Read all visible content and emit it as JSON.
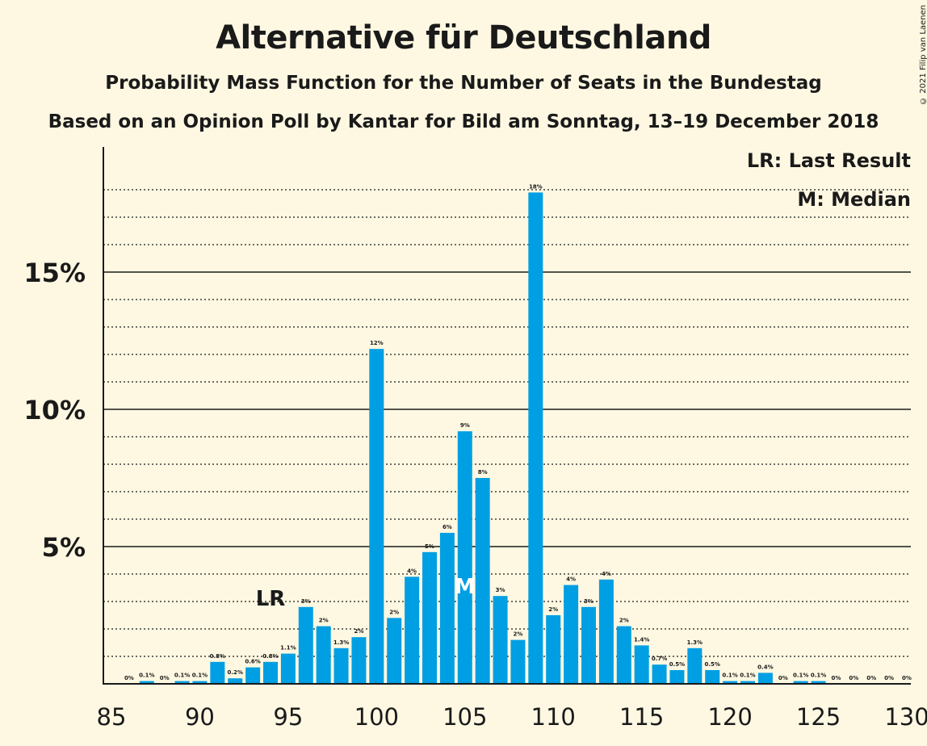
{
  "title": "Alternative für Deutschland",
  "subtitle": "Probability Mass Function for the Number of Seats in the Bundestag",
  "subtitle2": "Based on an Opinion Poll by Kantar for Bild am Sonntag, 13–19 December 2018",
  "copyright": "© 2021 Filip van Laenen",
  "legend": {
    "lr": "LR: Last Result",
    "m": "M: Median"
  },
  "colors": {
    "bar": "#009fe3",
    "background": "#fef8e2"
  },
  "chart_data": {
    "type": "bar",
    "x": [
      86,
      87,
      88,
      89,
      90,
      91,
      92,
      93,
      94,
      95,
      96,
      97,
      98,
      99,
      100,
      101,
      102,
      103,
      104,
      105,
      106,
      107,
      108,
      109,
      110,
      111,
      112,
      113,
      114,
      115,
      116,
      117,
      118,
      119,
      120,
      121,
      122,
      123,
      124,
      125,
      126,
      127,
      128,
      129,
      130
    ],
    "values": [
      0,
      0.1,
      0,
      0.1,
      0.1,
      0.8,
      0.2,
      0.6,
      0.8,
      1.1,
      2.8,
      2.1,
      1.3,
      1.7,
      12.2,
      2.4,
      3.9,
      4.8,
      5.5,
      9.2,
      7.5,
      3.2,
      1.6,
      17.9,
      2.5,
      3.6,
      2.8,
      3.8,
      2.1,
      1.4,
      0.7,
      0.5,
      1.3,
      0.5,
      0.1,
      0.1,
      0.4,
      0,
      0.1,
      0.1,
      0,
      0,
      0,
      0,
      0
    ],
    "labels": [
      "0%",
      "0.1%",
      "0%",
      "0.1%",
      "0.1%",
      "0.8%",
      "0.2%",
      "0.6%",
      "0.8%",
      "1.1%",
      "3%",
      "2%",
      "1.3%",
      "2%",
      "12%",
      "2%",
      "4%",
      "5%",
      "6%",
      "9%",
      "8%",
      "3%",
      "2%",
      "18%",
      "2%",
      "4%",
      "3%",
      "4%",
      "2%",
      "1.4%",
      "0.7%",
      "0.5%",
      "1.3%",
      "0.5%",
      "0.1%",
      "0.1%",
      "0.4%",
      "0%",
      "0.1%",
      "0.1%",
      "0%",
      "0%",
      "0%",
      "0%",
      "0%"
    ],
    "xlim": [
      85,
      130
    ],
    "ylim": [
      0,
      19.5
    ],
    "xticks": [
      "85",
      "90",
      "95",
      "100",
      "105",
      "110",
      "115",
      "120",
      "125",
      "130"
    ],
    "yticks": [
      {
        "value": 5,
        "label": "5%"
      },
      {
        "value": 10,
        "label": "10%"
      },
      {
        "value": 15,
        "label": "15%"
      }
    ],
    "minor_gridlines": [
      1,
      2,
      3,
      4,
      6,
      7,
      8,
      9,
      11,
      12,
      13,
      14,
      16,
      17,
      18
    ],
    "markers": [
      {
        "text": "LR",
        "seats": 94
      },
      {
        "text": "M",
        "seats": 105
      }
    ],
    "legend_position": "top-right",
    "grid": true
  }
}
